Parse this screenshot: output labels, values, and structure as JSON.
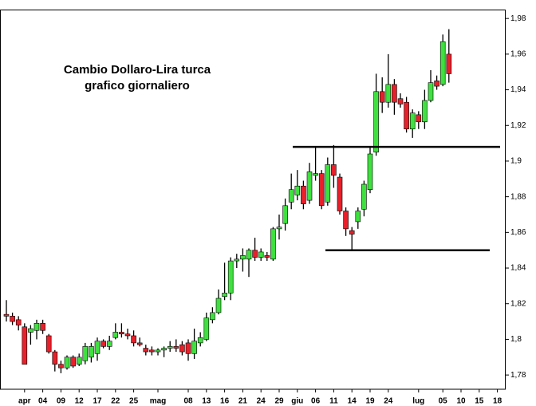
{
  "chart_data": {
    "type": "candlestick",
    "title": "Cambio Dollaro-Lira turca",
    "subtitle": "grafico giornaliero",
    "categories": [
      null,
      null,
      null,
      "apr",
      null,
      null,
      "04",
      null,
      null,
      "09",
      null,
      null,
      "12",
      null,
      null,
      "17",
      null,
      null,
      "22",
      null,
      null,
      "25",
      null,
      null,
      null,
      "mag",
      null,
      null,
      null,
      null,
      "08",
      null,
      null,
      "13",
      null,
      null,
      "16",
      null,
      null,
      "21",
      null,
      null,
      "24",
      null,
      null,
      "29",
      null,
      null,
      "giu",
      null,
      null,
      "06",
      null,
      null,
      "11",
      null,
      null,
      "14",
      null,
      null,
      "19",
      null,
      null,
      "24",
      null,
      null,
      null,
      null,
      "lug",
      null,
      null,
      null,
      "05",
      null,
      null,
      "10",
      null,
      null,
      "15",
      null,
      null,
      "18"
    ],
    "open": [
      1.814,
      1.813,
      1.811,
      1.807,
      1.804,
      1.805,
      1.809,
      1.802,
      1.793,
      1.786,
      1.784,
      1.79,
      1.786,
      1.788,
      1.79,
      1.792,
      1.799,
      1.796,
      1.801,
      1.804,
      1.803,
      1.802,
      1.798,
      1.795,
      1.794,
      1.793,
      1.794,
      1.795,
      1.796,
      1.797,
      1.798,
      1.792,
      1.798,
      1.8,
      1.811,
      1.815,
      1.824,
      1.826,
      1.844,
      1.845,
      1.845,
      1.85,
      1.846,
      1.847,
      1.845,
      1.862,
      1.865,
      1.877,
      1.881,
      1.886,
      1.878,
      1.892,
      1.893,
      1.877,
      1.898,
      1.891,
      1.872,
      1.861,
      1.866,
      1.873,
      1.884,
      1.905,
      1.939,
      1.933,
      1.943,
      1.935,
      1.933,
      1.918,
      1.926,
      1.922,
      1.934,
      1.945,
      1.943,
      1.96,
      null,
      null,
      null,
      null,
      null,
      null,
      null,
      null
    ],
    "high": [
      1.822,
      1.815,
      1.813,
      1.809,
      1.808,
      1.811,
      1.811,
      1.803,
      1.794,
      1.788,
      1.791,
      1.791,
      1.792,
      1.798,
      1.798,
      1.801,
      1.8,
      1.802,
      1.809,
      1.809,
      1.806,
      1.805,
      1.801,
      1.797,
      1.796,
      1.795,
      1.796,
      1.799,
      1.8,
      1.799,
      1.8,
      1.806,
      1.804,
      1.815,
      1.818,
      1.828,
      1.843,
      1.846,
      1.848,
      1.851,
      1.851,
      1.857,
      1.851,
      1.849,
      1.863,
      1.87,
      1.879,
      1.893,
      1.895,
      1.889,
      1.899,
      1.908,
      1.895,
      1.902,
      1.909,
      1.893,
      1.874,
      1.863,
      1.874,
      1.889,
      1.908,
      1.949,
      1.947,
      1.96,
      1.946,
      1.938,
      1.936,
      1.929,
      1.928,
      1.94,
      1.951,
      1.948,
      1.971,
      1.974,
      null,
      null,
      null,
      null,
      null,
      null,
      null,
      null
    ],
    "low": [
      1.81,
      1.808,
      1.805,
      1.786,
      1.797,
      1.8,
      1.803,
      1.792,
      1.782,
      1.781,
      1.783,
      1.784,
      1.785,
      1.786,
      1.787,
      1.788,
      1.795,
      1.794,
      1.8,
      1.801,
      1.8,
      1.796,
      1.796,
      1.791,
      1.791,
      1.791,
      1.79,
      1.793,
      1.793,
      1.791,
      1.788,
      1.789,
      1.796,
      1.799,
      1.809,
      1.814,
      1.822,
      1.822,
      1.84,
      1.838,
      1.835,
      1.844,
      1.844,
      1.844,
      1.844,
      1.856,
      1.861,
      1.873,
      1.878,
      1.873,
      1.876,
      1.889,
      1.873,
      1.875,
      1.885,
      1.87,
      1.858,
      1.85,
      1.862,
      1.869,
      1.882,
      1.903,
      1.927,
      1.93,
      1.926,
      1.93,
      1.916,
      1.913,
      1.918,
      1.918,
      1.933,
      1.94,
      1.942,
      1.944,
      null,
      null,
      null,
      null,
      null,
      null,
      null,
      null
    ],
    "close": [
      1.813,
      1.81,
      1.808,
      1.786,
      1.806,
      1.809,
      1.805,
      1.793,
      1.786,
      1.784,
      1.79,
      1.785,
      1.79,
      1.796,
      1.796,
      1.799,
      1.796,
      1.799,
      1.804,
      1.803,
      1.802,
      1.798,
      1.797,
      1.793,
      1.793,
      1.794,
      1.795,
      1.796,
      1.795,
      1.793,
      1.792,
      1.799,
      1.801,
      1.812,
      1.815,
      1.823,
      1.826,
      1.844,
      1.845,
      1.847,
      1.85,
      1.846,
      1.849,
      1.846,
      1.862,
      1.863,
      1.875,
      1.884,
      1.886,
      1.876,
      1.894,
      1.893,
      1.875,
      1.898,
      1.892,
      1.872,
      1.862,
      1.859,
      1.872,
      1.887,
      1.904,
      1.939,
      1.933,
      1.943,
      1.933,
      1.932,
      1.918,
      1.927,
      1.922,
      1.934,
      1.944,
      1.942,
      1.967,
      1.949,
      null,
      null,
      null,
      null,
      null,
      null,
      null,
      null
    ],
    "up_color": "#3fe03f",
    "down_color": "#e8202a",
    "hlines": [
      1.908,
      1.85
    ],
    "ylim": [
      1.772,
      1.985
    ],
    "yticks": [
      {
        "value": 1.78,
        "label": "1,78"
      },
      {
        "value": 1.8,
        "label": "1,8"
      },
      {
        "value": 1.82,
        "label": "1,82"
      },
      {
        "value": 1.84,
        "label": "1,84"
      },
      {
        "value": 1.86,
        "label": "1,86"
      },
      {
        "value": 1.88,
        "label": "1,88"
      },
      {
        "value": 1.9,
        "label": "1,9"
      },
      {
        "value": 1.92,
        "label": "1,92"
      },
      {
        "value": 1.94,
        "label": "1,94"
      },
      {
        "value": 1.96,
        "label": "1,96"
      },
      {
        "value": 1.98,
        "label": "1,98"
      }
    ],
    "y_axis_side": "right",
    "grid": false
  }
}
